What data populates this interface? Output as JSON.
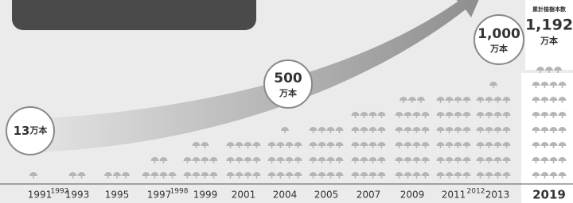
{
  "chart_data": {
    "type": "pictograph",
    "categories": [
      "1991",
      "1992",
      "1993",
      "1995",
      "1997",
      "1998",
      "1999",
      "2001",
      "2004",
      "2005",
      "2007",
      "2009",
      "2011",
      "2012",
      "2013",
      "2019"
    ],
    "minor": [
      false,
      true,
      false,
      false,
      false,
      true,
      false,
      false,
      false,
      false,
      false,
      false,
      false,
      true,
      false,
      false
    ],
    "values": [
      1,
      null,
      2,
      3,
      6,
      null,
      10,
      12,
      13,
      16,
      20,
      23,
      24,
      null,
      25,
      31
    ],
    "color": "#b5b5b5",
    "annotations": [
      {
        "number": "13",
        "unit": "万本"
      },
      {
        "number": "500",
        "unit": "万本"
      },
      {
        "number": "1,000",
        "unit": "万本"
      }
    ],
    "total_label": "累計植樹本数",
    "total": "1,192",
    "total_unit": "万本"
  }
}
